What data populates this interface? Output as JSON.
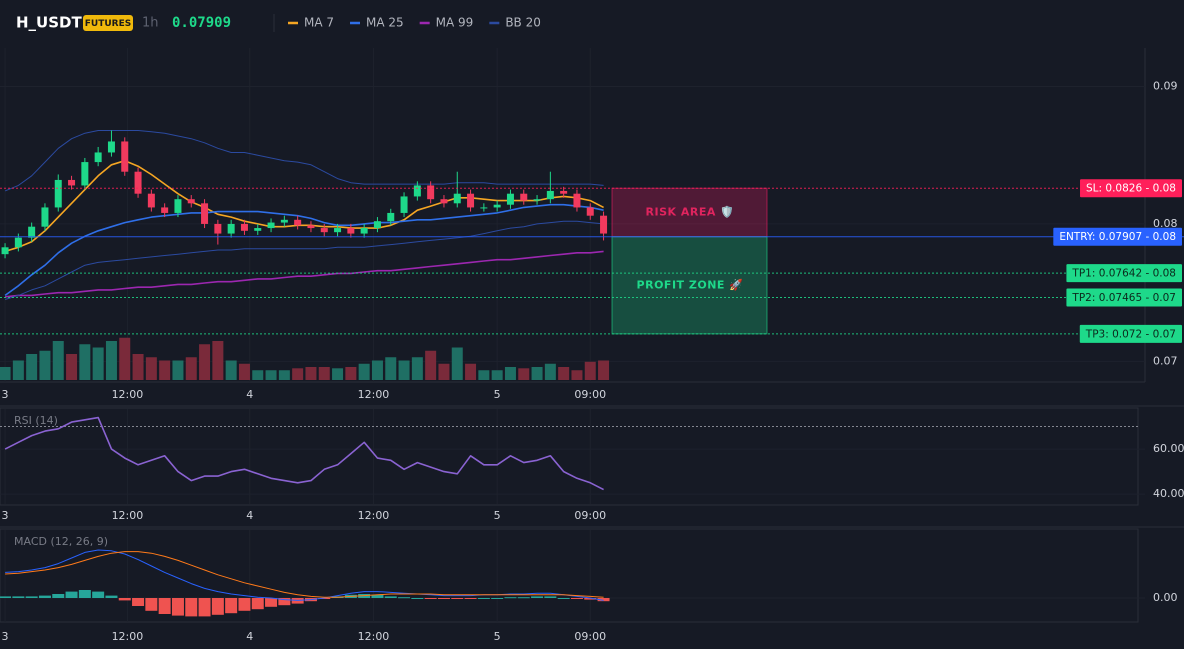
{
  "header": {
    "symbol": "H_USDT",
    "badge": "FUTURES",
    "interval": "1h",
    "price": 0.07909,
    "price_color": "#1ed98a"
  },
  "chart_data": [
    {
      "type": "candlestick",
      "xlim": [
        -0.38,
        85.71
      ],
      "xticks": [
        {
          "value": 0,
          "label": "3"
        },
        {
          "value": 9.2,
          "label": "12:00"
        },
        {
          "value": 18.4,
          "label": "4"
        },
        {
          "value": 27.7,
          "label": "12:00"
        },
        {
          "value": 37,
          "label": "5"
        },
        {
          "value": 44,
          "label": "09:00"
        }
      ],
      "ylim": [
        0.0685,
        0.0928
      ],
      "yticks": [
        0.07,
        0.08,
        0.09
      ],
      "grid": true,
      "up_color": "#1ed98a",
      "down_color": "#f23a5e",
      "volume_up_color": "#1f6f64",
      "volume_down_color": "#7a2a3a",
      "open": [
        0.0778,
        0.0783,
        0.079,
        0.0798,
        0.0812,
        0.0832,
        0.0828,
        0.0845,
        0.0852,
        0.086,
        0.0838,
        0.0822,
        0.0812,
        0.0808,
        0.0818,
        0.0815,
        0.08,
        0.0793,
        0.08,
        0.0795,
        0.0797,
        0.0801,
        0.0803,
        0.0799,
        0.0797,
        0.0794,
        0.0797,
        0.0793,
        0.0797,
        0.0802,
        0.0808,
        0.082,
        0.0828,
        0.0818,
        0.0815,
        0.0822,
        0.0812,
        0.0812,
        0.0814,
        0.0822,
        0.0817,
        0.0818,
        0.0824,
        0.0822,
        0.0812,
        0.0806
      ],
      "high": [
        0.0786,
        0.0793,
        0.0801,
        0.0815,
        0.0836,
        0.0835,
        0.0848,
        0.0856,
        0.0868,
        0.0863,
        0.0841,
        0.0825,
        0.0815,
        0.0821,
        0.0821,
        0.0818,
        0.0803,
        0.0803,
        0.0803,
        0.08,
        0.0804,
        0.0806,
        0.0806,
        0.0802,
        0.08,
        0.08,
        0.08,
        0.08,
        0.0805,
        0.0811,
        0.0823,
        0.0831,
        0.0831,
        0.0821,
        0.0838,
        0.0825,
        0.0815,
        0.0817,
        0.0825,
        0.0825,
        0.0821,
        0.0838,
        0.0827,
        0.0825,
        0.0815,
        0.0809
      ],
      "low": [
        0.0775,
        0.078,
        0.0787,
        0.0795,
        0.0809,
        0.0825,
        0.0825,
        0.0842,
        0.0849,
        0.0835,
        0.0819,
        0.0809,
        0.0805,
        0.0805,
        0.0812,
        0.0797,
        0.0785,
        0.079,
        0.0792,
        0.0792,
        0.0794,
        0.0798,
        0.0796,
        0.0794,
        0.0791,
        0.0791,
        0.079,
        0.079,
        0.0794,
        0.0799,
        0.0805,
        0.0817,
        0.0815,
        0.0812,
        0.0812,
        0.0809,
        0.0809,
        0.0809,
        0.0811,
        0.0814,
        0.0814,
        0.0815,
        0.0819,
        0.0809,
        0.0803,
        0.0788
      ],
      "close": [
        0.0783,
        0.079,
        0.0798,
        0.0812,
        0.0832,
        0.0828,
        0.0845,
        0.0852,
        0.086,
        0.0838,
        0.0822,
        0.0812,
        0.0808,
        0.0818,
        0.0815,
        0.08,
        0.0793,
        0.08,
        0.0795,
        0.0797,
        0.0801,
        0.0803,
        0.0799,
        0.0797,
        0.0794,
        0.0797,
        0.0793,
        0.0797,
        0.0802,
        0.0808,
        0.082,
        0.0828,
        0.0818,
        0.0815,
        0.0822,
        0.0812,
        0.0812,
        0.0814,
        0.0822,
        0.0817,
        0.0818,
        0.0824,
        0.0822,
        0.0812,
        0.0806,
        0.0793
      ],
      "volume": [
        20,
        30,
        40,
        45,
        60,
        40,
        55,
        50,
        60,
        65,
        40,
        35,
        30,
        30,
        35,
        55,
        60,
        30,
        25,
        15,
        15,
        15,
        18,
        20,
        20,
        18,
        20,
        25,
        30,
        35,
        30,
        35,
        45,
        25,
        50,
        25,
        15,
        15,
        20,
        18,
        20,
        25,
        20,
        15,
        28,
        30
      ],
      "series": [
        {
          "name": "MA 7",
          "color": "#f5a623",
          "values": [
            0.078,
            0.0783,
            0.0787,
            0.0795,
            0.0805,
            0.0815,
            0.0825,
            0.0835,
            0.0843,
            0.0846,
            0.0842,
            0.0836,
            0.0829,
            0.0822,
            0.0816,
            0.0812,
            0.0807,
            0.0805,
            0.0802,
            0.08,
            0.0798,
            0.0798,
            0.0799,
            0.0799,
            0.0798,
            0.0798,
            0.0797,
            0.0797,
            0.0797,
            0.0799,
            0.0803,
            0.081,
            0.0813,
            0.0816,
            0.0819,
            0.0819,
            0.0818,
            0.0817,
            0.0817,
            0.0817,
            0.0817,
            0.0819,
            0.082,
            0.0819,
            0.0817,
            0.0812
          ]
        },
        {
          "name": "MA 25",
          "color": "#2f6fe8",
          "values": [
            0.0748,
            0.0755,
            0.0763,
            0.077,
            0.0779,
            0.0786,
            0.0791,
            0.0795,
            0.0798,
            0.0801,
            0.0803,
            0.0805,
            0.0806,
            0.0807,
            0.0808,
            0.0808,
            0.0809,
            0.0809,
            0.0809,
            0.0809,
            0.0808,
            0.0807,
            0.0806,
            0.0804,
            0.0801,
            0.0799,
            0.0799,
            0.08,
            0.0801,
            0.0801,
            0.0802,
            0.0803,
            0.0803,
            0.0804,
            0.0805,
            0.0806,
            0.0807,
            0.0808,
            0.081,
            0.0812,
            0.0813,
            0.0814,
            0.0814,
            0.0813,
            0.0812,
            0.081
          ]
        },
        {
          "name": "MA 99",
          "color": "#9c27b0",
          "values": [
            0.0747,
            0.0748,
            0.0748,
            0.0749,
            0.075,
            0.075,
            0.0751,
            0.0752,
            0.0752,
            0.0753,
            0.0754,
            0.0754,
            0.0755,
            0.0756,
            0.0756,
            0.0757,
            0.0758,
            0.0758,
            0.0759,
            0.076,
            0.076,
            0.0761,
            0.0762,
            0.0762,
            0.0763,
            0.0764,
            0.0764,
            0.0765,
            0.0766,
            0.0766,
            0.0767,
            0.0768,
            0.0769,
            0.077,
            0.0771,
            0.0772,
            0.0773,
            0.0774,
            0.0774,
            0.0775,
            0.0776,
            0.0777,
            0.0778,
            0.0779,
            0.0779,
            0.078
          ]
        },
        {
          "name": "BB 20",
          "color": "#2b4aa0",
          "upper": [
            0.0824,
            0.0828,
            0.0835,
            0.0845,
            0.0855,
            0.0862,
            0.0866,
            0.0868,
            0.0868,
            0.0868,
            0.0868,
            0.0867,
            0.0866,
            0.0864,
            0.0862,
            0.0859,
            0.0855,
            0.0852,
            0.0852,
            0.085,
            0.0848,
            0.0846,
            0.0845,
            0.0843,
            0.0838,
            0.0833,
            0.083,
            0.0829,
            0.0829,
            0.0829,
            0.0829,
            0.0829,
            0.0829,
            0.0829,
            0.083,
            0.083,
            0.083,
            0.0829,
            0.0829,
            0.0829,
            0.0829,
            0.0829,
            0.0829,
            0.0829,
            0.0829,
            0.0828
          ],
          "lower": [
            0.0745,
            0.0748,
            0.0752,
            0.0755,
            0.076,
            0.0765,
            0.077,
            0.0772,
            0.0773,
            0.0774,
            0.0775,
            0.0776,
            0.0777,
            0.0778,
            0.0779,
            0.078,
            0.0781,
            0.0781,
            0.0782,
            0.0782,
            0.0782,
            0.0782,
            0.0782,
            0.0782,
            0.0782,
            0.0783,
            0.0783,
            0.0783,
            0.0784,
            0.0785,
            0.0786,
            0.0787,
            0.0788,
            0.0789,
            0.079,
            0.0791,
            0.0793,
            0.0795,
            0.0797,
            0.0798,
            0.08,
            0.0801,
            0.0802,
            0.0802,
            0.0801,
            0.08
          ]
        }
      ],
      "levels": [
        {
          "label": "SL: 0.0826 - 0.08",
          "value": 0.0826,
          "color": "#ff1f5a",
          "text_color": "#ffffff",
          "dash": true
        },
        {
          "label": "ENTRY: 0.07907 - 0.08",
          "value": 0.07907,
          "color": "#2962ff",
          "text_color": "#ffffff",
          "dash": false
        },
        {
          "label": "TP1: 0.07642 - 0.08",
          "value": 0.07642,
          "color": "#1ed98a",
          "text_color": "#0b2a1c",
          "dash": true
        },
        {
          "label": "TP2: 0.07465 - 0.07",
          "value": 0.07465,
          "color": "#1ed98a",
          "text_color": "#0b2a1c",
          "dash": true
        },
        {
          "label": "TP3: 0.072 - 0.07",
          "value": 0.072,
          "color": "#1ed98a",
          "text_color": "#0b2a1c",
          "dash": true
        }
      ],
      "zones": [
        {
          "label": "RISK AREA 🛡️",
          "from": 0.0826,
          "to": 0.07907,
          "color": "#e91e63",
          "text_color": "#e0245e"
        },
        {
          "label": "PROFIT ZONE 🚀",
          "from": 0.07907,
          "to": 0.072,
          "color": "#1ed98a",
          "text_color": "#1ed98a"
        }
      ]
    },
    {
      "type": "line",
      "title": "RSI (14)",
      "xlim": [
        -0.38,
        85.71
      ],
      "xticks": [
        {
          "value": 0,
          "label": "3"
        },
        {
          "value": 9.2,
          "label": "12:00"
        },
        {
          "value": 18.4,
          "label": "4"
        },
        {
          "value": 27.7,
          "label": "12:00"
        },
        {
          "value": 37,
          "label": "5"
        },
        {
          "value": 44,
          "label": "09:00"
        }
      ],
      "ylim": [
        35.6,
        77.8
      ],
      "yticks": [
        {
          "value": 40,
          "label": "40.00"
        },
        {
          "value": 60,
          "label": "60.00"
        }
      ],
      "reference_line": 70,
      "color": "#8a63d2",
      "values": [
        60,
        63,
        66,
        68,
        69,
        72,
        73,
        74,
        60,
        56,
        53,
        55,
        57,
        50,
        46,
        48,
        48,
        50,
        51,
        49,
        47,
        46,
        45,
        46,
        51,
        53,
        58,
        63,
        56,
        55,
        51,
        54,
        52,
        50,
        49,
        57,
        53,
        53,
        57,
        54,
        55,
        57,
        50,
        47,
        45,
        42
      ]
    },
    {
      "type": "macd",
      "title": "MACD (12, 26, 9)",
      "xlim": [
        -0.38,
        85.71
      ],
      "xticks": [
        {
          "value": 0,
          "label": "3"
        },
        {
          "value": 9.2,
          "label": "12:00"
        },
        {
          "value": 18.4,
          "label": "4"
        },
        {
          "value": 27.7,
          "label": "12:00"
        },
        {
          "value": 37,
          "label": "5"
        },
        {
          "value": 44,
          "label": "09:00"
        }
      ],
      "ylim": [
        -0.0003,
        0.00085
      ],
      "yticks": [
        {
          "value": 0,
          "label": "0.00"
        }
      ],
      "macd": {
        "color": "#2962ff",
        "values": [
          0.00032,
          0.00033,
          0.00035,
          0.00038,
          0.00043,
          0.0005,
          0.00057,
          0.0006,
          0.00059,
          0.00055,
          0.00048,
          0.0004,
          0.00032,
          0.00025,
          0.00018,
          0.00012,
          8e-05,
          5e-05,
          3e-05,
          1e-05,
          0,
          -2e-05,
          -3e-05,
          -2e-05,
          0,
          3e-05,
          6e-05,
          8e-05,
          8e-05,
          7e-05,
          6e-05,
          5e-05,
          4e-05,
          3e-05,
          3e-05,
          3e-05,
          4e-05,
          4e-05,
          5e-05,
          5e-05,
          6e-05,
          6e-05,
          4e-05,
          2e-05,
          0,
          -3e-05
        ]
      },
      "signal": {
        "color": "#ff7a1a",
        "values": [
          0.0003,
          0.00031,
          0.00033,
          0.00035,
          0.00038,
          0.00042,
          0.00047,
          0.00052,
          0.00056,
          0.00058,
          0.00058,
          0.00056,
          0.00052,
          0.00047,
          0.00041,
          0.00035,
          0.00029,
          0.00024,
          0.00019,
          0.00015,
          0.00011,
          7e-05,
          4e-05,
          2e-05,
          1e-05,
          1e-05,
          2e-05,
          3e-05,
          4e-05,
          5e-05,
          5e-05,
          5e-05,
          5e-05,
          4e-05,
          4e-05,
          4e-05,
          4e-05,
          4e-05,
          4e-05,
          4e-05,
          4e-05,
          4e-05,
          4e-05,
          3e-05,
          2e-05,
          1e-05
        ]
      },
      "histogram": {
        "up_color": "#26a69a",
        "down_color": "#ef5350",
        "values": [
          2e-05,
          2e-05,
          2e-05,
          3e-05,
          5e-05,
          8e-05,
          0.0001,
          8e-05,
          3e-05,
          -3e-05,
          -0.0001,
          -0.00016,
          -0.0002,
          -0.00022,
          -0.00023,
          -0.00023,
          -0.00021,
          -0.00019,
          -0.00016,
          -0.00014,
          -0.00011,
          -9e-05,
          -7e-05,
          -4e-05,
          -1e-05,
          2e-05,
          4e-05,
          5e-05,
          4e-05,
          2e-05,
          1e-05,
          0,
          -1e-05,
          -1e-05,
          -1e-05,
          -1e-05,
          0,
          0,
          1e-05,
          1e-05,
          2e-05,
          2e-05,
          0,
          -1e-05,
          -2e-05,
          -4e-05
        ]
      }
    }
  ]
}
